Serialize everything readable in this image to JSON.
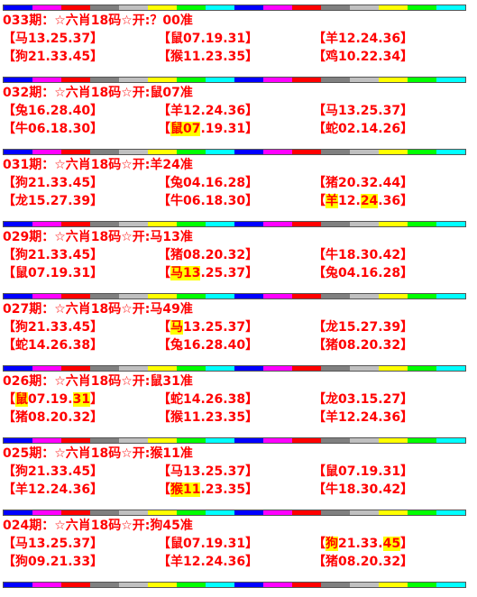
{
  "stripe_colors": [
    "#0000ff",
    "#ff00ff",
    "#ff0000",
    "#808080",
    "#c0c0c0",
    "#ffff00",
    "#00ff00",
    "#00ffff",
    "#0000ff",
    "#ff00ff",
    "#ff0000",
    "#808080",
    "#c0c0c0",
    "#ffff00",
    "#00ff00",
    "#00ffff"
  ],
  "blocks": [
    {
      "title": "033期：☆六肖18码☆开:？00准",
      "rows": [
        [
          {
            "t": "【马13.25.37】"
          },
          {
            "t": "【鼠07.19.31】"
          },
          {
            "t": "【羊12.24.36】"
          }
        ],
        [
          {
            "t": "【狗21.33.45】"
          },
          {
            "t": "【猴11.23.35】"
          },
          {
            "t": "【鸡10.22.34】"
          }
        ]
      ]
    },
    {
      "title": "032期：☆六肖18码☆开:鼠07准",
      "rows": [
        [
          {
            "t": "【兔16.28.40】"
          },
          {
            "t": "【羊12.24.36】"
          },
          {
            "t": "【马13.25.37】"
          }
        ],
        [
          {
            "t": "【牛06.18.30】"
          },
          {
            "t": "【",
            "h1": "鼠07",
            "t2": ".19.31】"
          },
          {
            "t": "【蛇02.14.26】"
          }
        ]
      ]
    },
    {
      "title": "031期：☆六肖18码☆开:羊24准",
      "rows": [
        [
          {
            "t": "【狗21.33.45】"
          },
          {
            "t": "【兔04.16.28】"
          },
          {
            "t": "【猪20.32.44】"
          }
        ],
        [
          {
            "t": "【龙15.27.39】"
          },
          {
            "t": "【牛06.18.30】"
          },
          {
            "t": "【",
            "h1": "羊",
            "t2": "12.",
            "h2": "24",
            "t3": ".36】"
          }
        ]
      ]
    },
    {
      "title": "029期：☆六肖18码☆开:马13准",
      "rows": [
        [
          {
            "t": "【狗21.33.45】"
          },
          {
            "t": "【猪08.20.32】"
          },
          {
            "t": "【牛18.30.42】"
          }
        ],
        [
          {
            "t": "【鼠07.19.31】"
          },
          {
            "t": "【",
            "h1": "马13",
            "t2": ".25.37】"
          },
          {
            "t": "【兔04.16.28】"
          }
        ]
      ]
    },
    {
      "title": "027期：☆六肖18码☆开:马49准",
      "rows": [
        [
          {
            "t": "【狗21.33.45】"
          },
          {
            "t": "【",
            "h1": "马",
            "t2": "13.25.37】"
          },
          {
            "t": "【龙15.27.39】"
          }
        ],
        [
          {
            "t": "【蛇14.26.38】"
          },
          {
            "t": "【兔16.28.40】"
          },
          {
            "t": "【猪08.20.32】"
          }
        ]
      ]
    },
    {
      "title": "026期：☆六肖18码☆开:鼠31准",
      "rows": [
        [
          {
            "t": "【",
            "h1": "鼠",
            "t2": "07.19.",
            "h2": "31",
            "t3": "】"
          },
          {
            "t": "【蛇14.26.38】"
          },
          {
            "t": "【龙03.15.27】"
          }
        ],
        [
          {
            "t": "【猪08.20.32】"
          },
          {
            "t": "【猴11.23.35】"
          },
          {
            "t": "【羊12.24.36】"
          }
        ]
      ]
    },
    {
      "title": "025期：☆六肖18码☆开:猴11准",
      "rows": [
        [
          {
            "t": "【狗21.33.45】"
          },
          {
            "t": "【马13.25.37】"
          },
          {
            "t": "【鼠07.19.31】"
          }
        ],
        [
          {
            "t": "【羊12.24.36】"
          },
          {
            "t": "【",
            "h1": "猴11",
            "t2": ".23.35】"
          },
          {
            "t": "【牛18.30.42】"
          }
        ]
      ]
    },
    {
      "title": "024期：☆六肖18码☆开:狗45准",
      "rows": [
        [
          {
            "t": "【马13.25.37】"
          },
          {
            "t": "【鼠07.19.31】"
          },
          {
            "t": "【",
            "h1": "狗",
            "t2": "21.33.",
            "h2": "45",
            "t3": "】"
          }
        ],
        [
          {
            "t": "【狗09.21.33】"
          },
          {
            "t": "【羊12.24.36】"
          },
          {
            "t": "【猪08.20.32】"
          }
        ]
      ]
    }
  ]
}
